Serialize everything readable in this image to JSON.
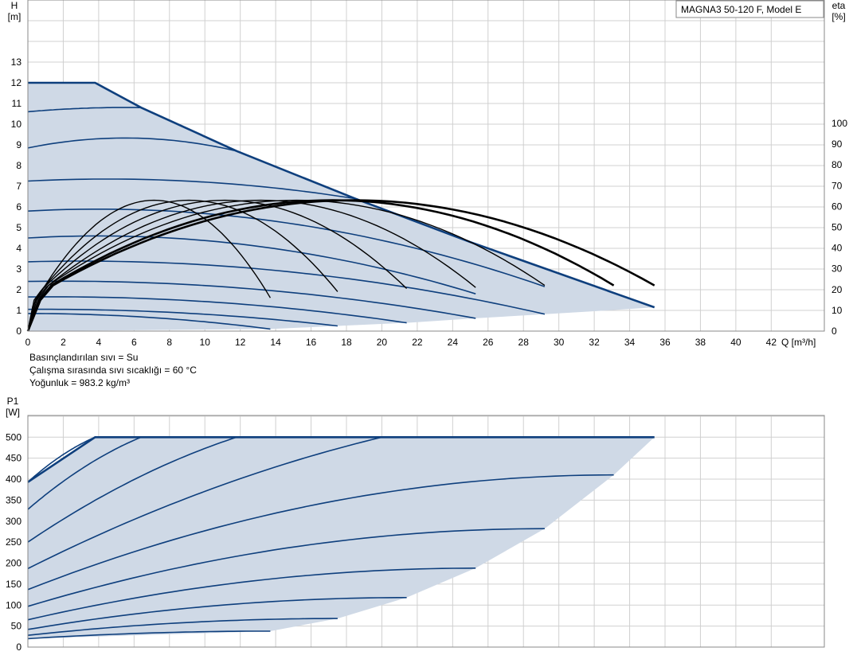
{
  "colors": {
    "fill": "#cfd9e6",
    "curve": "#0e3f7d",
    "eta": "#000000",
    "grid": "#d0d0d0",
    "frame": "#888888"
  },
  "model_label": "MAGNA3 50-120 F, Model E",
  "conditions": [
    "Basınçlandırılan sıvı = Su",
    "Çalışma sırasında sıvı sıcaklığı = 60 °C",
    "Yoğunluk = 983.2 kg/m³"
  ],
  "chart_data": [
    {
      "type": "line",
      "ylabel_left": [
        "H",
        "[m]"
      ],
      "ylabel_right": [
        "eta",
        "[%]"
      ],
      "xlabel": "Q [m³/h]",
      "xlim": [
        0,
        45
      ],
      "ylim": [
        0,
        15
      ],
      "y2lim": [
        0,
        100
      ],
      "x_ticks": [
        0,
        2,
        4,
        6,
        8,
        10,
        12,
        14,
        16,
        18,
        20,
        22,
        24,
        26,
        28,
        30,
        32,
        34,
        36,
        38,
        40,
        42
      ],
      "y_ticks": [
        0,
        1,
        2,
        3,
        4,
        5,
        6,
        7,
        8,
        9,
        10,
        11,
        12,
        13
      ],
      "y2_ticks": [
        0,
        10,
        20,
        30,
        40,
        50,
        60,
        70,
        80,
        90,
        100
      ],
      "grid": true,
      "max_curve": [
        [
          0,
          12
        ],
        [
          3.8,
          12
        ],
        [
          6.4,
          10.8
        ],
        [
          11.8,
          8.7
        ],
        [
          18.5,
          6.4
        ],
        [
          25,
          4.3
        ],
        [
          35.4,
          1.15
        ]
      ],
      "operating_region_bottom": [
        [
          0,
          0
        ],
        [
          13.7,
          0.1
        ],
        [
          17.5,
          0.25
        ],
        [
          21.4,
          0.4
        ],
        [
          25.3,
          0.62
        ],
        [
          29.2,
          0.82
        ],
        [
          33.1,
          1.02
        ],
        [
          35.4,
          1.15
        ]
      ],
      "speed_curves": [
        {
          "h0": 10.6,
          "end": [
            6.4,
            10.8
          ],
          "peak_x": 5.5
        },
        {
          "h0": 8.85,
          "end": [
            11.8,
            8.7
          ],
          "peak_x": 5.5
        },
        {
          "h0": 7.25,
          "end": [
            18.5,
            6.4
          ],
          "peak_x": 4.5
        },
        {
          "h0": 5.8,
          "end": [
            29.2,
            2.15
          ],
          "peak_x": 4
        },
        {
          "h0": 4.5,
          "end": [
            25.3,
            1.8
          ],
          "peak_x": 4
        },
        {
          "h0": 3.35,
          "end": [
            29.2,
            0.82
          ],
          "peak_x": 3
        },
        {
          "h0": 2.4,
          "end": [
            25.3,
            0.62
          ],
          "peak_x": 2
        },
        {
          "h0": 1.65,
          "end": [
            21.4,
            0.4
          ],
          "peak_x": 1.5
        },
        {
          "h0": 1.05,
          "end": [
            17.5,
            0.25
          ],
          "peak_x": 1
        },
        {
          "h0": 0.85,
          "end": [
            13.7,
            0.1
          ],
          "peak_x": 0
        }
      ],
      "efficiency_curves": [
        {
          "q_end": 13.7,
          "eta_end": 16
        },
        {
          "q_end": 17.5,
          "eta_end": 19
        },
        {
          "q_end": 21.4,
          "eta_end": 20.5
        },
        {
          "q_end": 25.3,
          "eta_end": 21
        },
        {
          "q_end": 29.2,
          "eta_end": 22
        },
        {
          "q_end": 33.1,
          "eta_end": 22
        },
        {
          "q_end": 35.4,
          "eta_end": 22
        }
      ],
      "eta_peak": 63
    },
    {
      "type": "line",
      "ylabel_left": [
        "P1",
        "[W]"
      ],
      "xlim": [
        0,
        45
      ],
      "ylim": [
        0,
        500
      ],
      "y_ticks": [
        0,
        50,
        100,
        150,
        200,
        250,
        300,
        350,
        400,
        450,
        500
      ],
      "grid": true,
      "region_top": [
        [
          0,
          393
        ],
        [
          3.8,
          500
        ],
        [
          35.4,
          500
        ]
      ],
      "region_right": [
        [
          35.4,
          500
        ],
        [
          33.1,
          410
        ],
        [
          29.2,
          282
        ],
        [
          25.3,
          188
        ],
        [
          21.4,
          118
        ],
        [
          17.5,
          68
        ],
        [
          13.7,
          38
        ],
        [
          0,
          20
        ]
      ],
      "power_curves": [
        {
          "p0": 393,
          "end": [
            3.8,
            500
          ]
        },
        {
          "p0": 328,
          "end": [
            6.4,
            500
          ]
        },
        {
          "p0": 250,
          "end": [
            11.8,
            500
          ]
        },
        {
          "p0": 187,
          "end": [
            20,
            500
          ]
        },
        {
          "p0": 137,
          "end": [
            33.1,
            410
          ]
        },
        {
          "p0": 97,
          "end": [
            29.2,
            282
          ]
        },
        {
          "p0": 65,
          "end": [
            25.3,
            188
          ]
        },
        {
          "p0": 42,
          "end": [
            21.4,
            118
          ]
        },
        {
          "p0": 28,
          "end": [
            17.5,
            68
          ]
        },
        {
          "p0": 20,
          "end": [
            13.7,
            38
          ]
        }
      ]
    }
  ]
}
